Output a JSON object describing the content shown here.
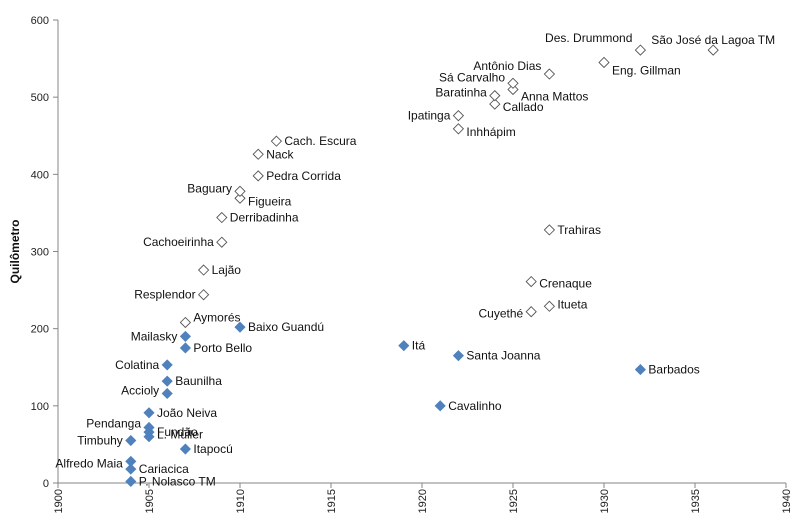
{
  "chart_data": {
    "type": "scatter",
    "title": "",
    "xlabel": "",
    "ylabel": "Quilômetro",
    "xlim": [
      1900,
      1940
    ],
    "ylim": [
      0,
      600
    ],
    "xticks": [
      "1900",
      "1905",
      "1910",
      "1915",
      "1920",
      "1925",
      "1930",
      "1935",
      "1940"
    ],
    "yticks": [
      "0",
      "100",
      "200",
      "300",
      "400",
      "500",
      "600"
    ],
    "grid": false,
    "legend": "none",
    "series": [
      {
        "marker": "diamond-filled",
        "color": "#4f81bd",
        "points": [
          {
            "label": "P. Nolasco TM",
            "x": 1904,
            "y": 2
          },
          {
            "label": "Cariacica",
            "x": 1904,
            "y": 18
          },
          {
            "label": "Alfredo Maia",
            "x": 1904,
            "y": 28
          },
          {
            "label": "Itapocú",
            "x": 1907,
            "y": 44
          },
          {
            "label": "Timbuhy",
            "x": 1904,
            "y": 55
          },
          {
            "label": "L. Müller",
            "x": 1905,
            "y": 60
          },
          {
            "label": "Fundão",
            "x": 1905,
            "y": 66
          },
          {
            "label": "Pendanga",
            "x": 1905,
            "y": 72
          },
          {
            "label": "João Neiva",
            "x": 1905,
            "y": 91
          },
          {
            "label": "Accioly",
            "x": 1906,
            "y": 116
          },
          {
            "label": "Baunilha",
            "x": 1906,
            "y": 132
          },
          {
            "label": "Colatina",
            "x": 1906,
            "y": 153
          },
          {
            "label": "Porto Bello",
            "x": 1907,
            "y": 175
          },
          {
            "label": "Mailasky",
            "x": 1907,
            "y": 190
          },
          {
            "label": "Baixo Guandú",
            "x": 1910,
            "y": 202
          },
          {
            "label": "Itá",
            "x": 1919,
            "y": 178
          },
          {
            "label": "Santa Joanna",
            "x": 1922,
            "y": 165
          },
          {
            "label": "Cavalinho",
            "x": 1921,
            "y": 100
          },
          {
            "label": "Barbados",
            "x": 1932,
            "y": 147
          }
        ]
      },
      {
        "marker": "diamond-open",
        "color": "#555555",
        "points": [
          {
            "label": "Aymorés",
            "x": 1907,
            "y": 208
          },
          {
            "label": "Resplendor",
            "x": 1908,
            "y": 244
          },
          {
            "label": "Lajão",
            "x": 1908,
            "y": 276
          },
          {
            "label": "Cachoeirinha",
            "x": 1909,
            "y": 312
          },
          {
            "label": "Derribadinha",
            "x": 1909,
            "y": 344
          },
          {
            "label": "Figueira",
            "x": 1910,
            "y": 369
          },
          {
            "label": "Baguary",
            "x": 1910,
            "y": 378
          },
          {
            "label": "Pedra Corrida",
            "x": 1911,
            "y": 398
          },
          {
            "label": "Nack",
            "x": 1911,
            "y": 426
          },
          {
            "label": "Cach. Escura",
            "x": 1912,
            "y": 443
          },
          {
            "label": "Cuyethé",
            "x": 1926,
            "y": 222
          },
          {
            "label": "Itueta",
            "x": 1927,
            "y": 229
          },
          {
            "label": "Crenaque",
            "x": 1926,
            "y": 261
          },
          {
            "label": "Trahiras",
            "x": 1927,
            "y": 328
          },
          {
            "label": "Inhhápim",
            "x": 1922,
            "y": 459
          },
          {
            "label": "Ipatinga",
            "x": 1922,
            "y": 476
          },
          {
            "label": "Callado",
            "x": 1924,
            "y": 491
          },
          {
            "label": "Baratinha",
            "x": 1924,
            "y": 502
          },
          {
            "label": "Anna Mattos",
            "x": 1925,
            "y": 510
          },
          {
            "label": "Sá Carvalho",
            "x": 1925,
            "y": 518
          },
          {
            "label": "Antônio Dias",
            "x": 1927,
            "y": 530
          },
          {
            "label": "Eng. Gillman",
            "x": 1930,
            "y": 545
          },
          {
            "label": "Des. Drummond",
            "x": 1932,
            "y": 561
          },
          {
            "label": "São José da Lagoa TM",
            "x": 1936,
            "y": 561
          }
        ]
      }
    ]
  }
}
